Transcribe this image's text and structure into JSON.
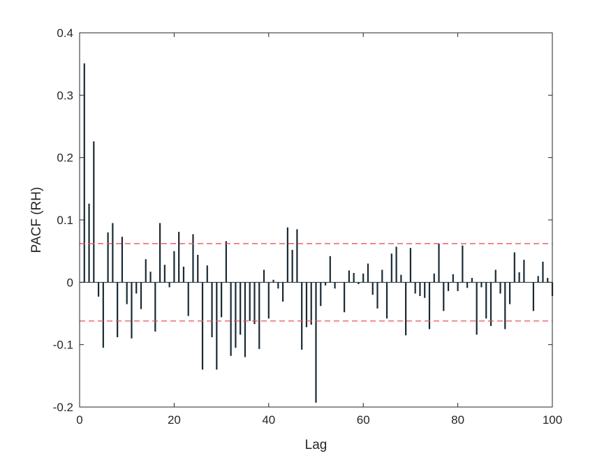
{
  "chart_data": {
    "type": "bar",
    "title": "",
    "xlabel": "Lag",
    "ylabel": "PACF (RH)",
    "xlim": [
      0,
      100
    ],
    "ylim": [
      -0.2,
      0.4
    ],
    "xticks": [
      0,
      20,
      40,
      60,
      80,
      100
    ],
    "yticks": [
      -0.2,
      -0.1,
      0,
      0.1,
      0.2,
      0.3,
      0.4
    ],
    "xtick_labels": [
      "0",
      "20",
      "40",
      "60",
      "80",
      "100"
    ],
    "ytick_labels": [
      "-0.2",
      "-0.1",
      "0",
      "0.1",
      "0.2",
      "0.3",
      "0.4"
    ],
    "grid": false,
    "confidence_bounds": [
      0.062,
      -0.062
    ],
    "colors": {
      "stem": "#1a2a33",
      "bounds": "#e8505b",
      "axis": "#262626"
    },
    "lags": [
      1,
      2,
      3,
      4,
      5,
      6,
      7,
      8,
      9,
      10,
      11,
      12,
      13,
      14,
      15,
      16,
      17,
      18,
      19,
      20,
      21,
      22,
      23,
      24,
      25,
      26,
      27,
      28,
      29,
      30,
      31,
      32,
      33,
      34,
      35,
      36,
      37,
      38,
      39,
      40,
      41,
      42,
      43,
      44,
      45,
      46,
      47,
      48,
      49,
      50,
      51,
      52,
      53,
      54,
      55,
      56,
      57,
      58,
      59,
      60,
      61,
      62,
      63,
      64,
      65,
      66,
      67,
      68,
      69,
      70,
      71,
      72,
      73,
      74,
      75,
      76,
      77,
      78,
      79,
      80,
      81,
      82,
      83,
      84,
      85,
      86,
      87,
      88,
      89,
      90,
      91,
      92,
      93,
      94,
      95,
      96,
      97,
      98,
      99,
      100
    ],
    "values": [
      0.351,
      0.126,
      0.226,
      -0.023,
      -0.105,
      0.08,
      0.095,
      -0.088,
      0.073,
      -0.035,
      -0.09,
      -0.018,
      -0.043,
      0.037,
      0.017,
      -0.079,
      0.095,
      0.028,
      -0.008,
      0.05,
      0.081,
      0.025,
      -0.054,
      0.077,
      0.044,
      -0.14,
      0.027,
      -0.088,
      -0.14,
      -0.056,
      0.066,
      -0.118,
      -0.105,
      -0.084,
      -0.12,
      -0.062,
      -0.067,
      -0.107,
      0.02,
      -0.058,
      0.004,
      -0.01,
      -0.031,
      0.088,
      0.052,
      0.085,
      -0.108,
      -0.072,
      -0.068,
      -0.193,
      -0.038,
      -0.005,
      0.042,
      -0.01,
      0.0,
      -0.048,
      0.019,
      0.015,
      -0.003,
      0.014,
      0.03,
      -0.02,
      -0.042,
      0.02,
      -0.058,
      0.046,
      0.057,
      0.012,
      -0.085,
      0.055,
      -0.018,
      -0.022,
      -0.025,
      -0.075,
      0.014,
      0.062,
      -0.046,
      -0.014,
      0.013,
      -0.014,
      0.059,
      -0.009,
      0.007,
      -0.084,
      -0.008,
      -0.058,
      -0.07,
      0.02,
      -0.018,
      -0.075,
      -0.035,
      0.048,
      0.016,
      0.036,
      0.0,
      -0.046,
      0.01,
      0.033,
      0.007,
      -0.022
    ]
  }
}
